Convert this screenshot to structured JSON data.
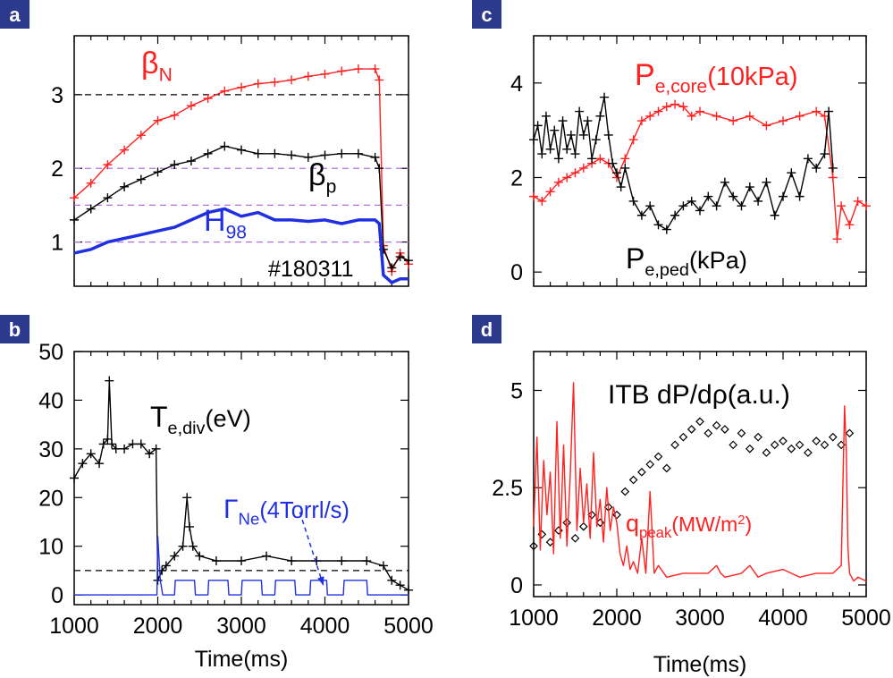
{
  "figure": {
    "time_axis_label": "Time(ms)"
  },
  "chart_data": [
    {
      "panel": "a",
      "type": "line",
      "xlim": [
        1000,
        5000
      ],
      "ylim": [
        0.4,
        3.8
      ],
      "yticks": [
        "1",
        "2",
        "3"
      ],
      "xticks": [],
      "reference_lines": [
        {
          "y": 3.0,
          "style": "dashed",
          "color": "#000000"
        },
        {
          "y": 2.0,
          "style": "dashed",
          "color": "#b070e0"
        },
        {
          "y": 1.5,
          "style": "dashed",
          "color": "#b070e0"
        },
        {
          "y": 1.0,
          "style": "dashed",
          "color": "#b070e0"
        }
      ],
      "shot_label": "#180311",
      "series": [
        {
          "name": "βN",
          "label_main": "β",
          "label_sub": "N",
          "color": "#ff2020",
          "marker": "plus",
          "x": [
            1000,
            1200,
            1400,
            1600,
            1800,
            2000,
            2200,
            2400,
            2600,
            2800,
            3000,
            3200,
            3400,
            3600,
            3800,
            4000,
            4200,
            4400,
            4600,
            4650,
            4700,
            4800,
            4900,
            5000
          ],
          "y": [
            1.6,
            1.8,
            2.05,
            2.25,
            2.45,
            2.65,
            2.72,
            2.85,
            2.95,
            3.05,
            3.1,
            3.15,
            3.17,
            3.2,
            3.25,
            3.28,
            3.32,
            3.35,
            3.35,
            3.2,
            0.95,
            0.6,
            0.85,
            0.7
          ]
        },
        {
          "name": "βp",
          "label_main": "β",
          "label_sub": "p",
          "color": "#000000",
          "marker": "plus",
          "x": [
            1000,
            1200,
            1400,
            1600,
            1800,
            2000,
            2200,
            2400,
            2600,
            2800,
            3000,
            3200,
            3400,
            3600,
            3800,
            4000,
            4200,
            4400,
            4600,
            4650,
            4700,
            4800,
            4900,
            5000
          ],
          "y": [
            1.3,
            1.45,
            1.6,
            1.75,
            1.85,
            1.95,
            2.05,
            2.1,
            2.2,
            2.3,
            2.25,
            2.2,
            2.2,
            2.18,
            2.15,
            2.18,
            2.2,
            2.2,
            2.15,
            2.0,
            0.9,
            0.65,
            0.8,
            0.75
          ]
        },
        {
          "name": "H98",
          "label_main": "H",
          "label_sub": "98",
          "color": "#2030e0",
          "marker": "none",
          "x": [
            1000,
            1200,
            1400,
            1600,
            1800,
            2000,
            2200,
            2400,
            2600,
            2800,
            3000,
            3200,
            3400,
            3600,
            3800,
            4000,
            4200,
            4400,
            4600,
            4650,
            4700,
            4800,
            4900,
            5000
          ],
          "y": [
            0.85,
            0.9,
            1.0,
            1.05,
            1.1,
            1.15,
            1.2,
            1.3,
            1.4,
            1.45,
            1.35,
            1.4,
            1.3,
            1.3,
            1.28,
            1.3,
            1.25,
            1.3,
            1.3,
            1.25,
            0.55,
            0.45,
            0.5,
            0.5
          ]
        }
      ]
    },
    {
      "panel": "b",
      "type": "line",
      "xlim": [
        1000,
        5000
      ],
      "ylim": [
        -2,
        50
      ],
      "yticks": [
        "0",
        "10",
        "20",
        "30",
        "40",
        "50"
      ],
      "xticks": [
        "1000",
        "2000",
        "3000",
        "4000",
        "5000"
      ],
      "reference_lines": [
        {
          "y": 5,
          "style": "dashed",
          "color": "#000000"
        }
      ],
      "arrow_annotation": {
        "from": [
          3700,
          17
        ],
        "to": [
          3980,
          2
        ],
        "color": "#2030e0"
      },
      "series": [
        {
          "name": "Te,div(eV)",
          "label_main": "T",
          "label_sub": "e,div",
          "label_tail": "(eV)",
          "color": "#000000",
          "marker": "plus",
          "x": [
            1000,
            1100,
            1200,
            1300,
            1350,
            1400,
            1420,
            1450,
            1500,
            1600,
            1700,
            1800,
            1900,
            1980,
            2000,
            2050,
            2100,
            2200,
            2300,
            2350,
            2380,
            2420,
            2500,
            2700,
            3000,
            3300,
            3600,
            3900,
            4200,
            4500,
            4700,
            4800,
            4900,
            5000
          ],
          "y": [
            24,
            27,
            29,
            27,
            31,
            32,
            44,
            31,
            30,
            30,
            31,
            31,
            29,
            30,
            3,
            5,
            6,
            8,
            10,
            20,
            14,
            10,
            8,
            7,
            7,
            8,
            7,
            7,
            7,
            7,
            6,
            3,
            2,
            1
          ]
        },
        {
          "name": "ΓNe(4Torrl/s)",
          "label_main": "Γ",
          "label_sub": "Ne",
          "label_tail": "(4Torrl/s)",
          "color": "#2030e0",
          "marker": "none",
          "x": [
            1000,
            1990,
            2000,
            2030,
            2060,
            2200,
            2210,
            2440,
            2450,
            2600,
            2610,
            2840,
            2850,
            3000,
            3010,
            3240,
            3250,
            3400,
            3410,
            3640,
            3650,
            3820,
            3830,
            4020,
            4030,
            4220,
            4230,
            4500,
            4510,
            5000
          ],
          "y": [
            0,
            0,
            12,
            3,
            0,
            0,
            3,
            3,
            0,
            0,
            3,
            3,
            0,
            0,
            3,
            3,
            0,
            0,
            3,
            3,
            0,
            0,
            3,
            3,
            0,
            0,
            3,
            3,
            0,
            0
          ]
        }
      ]
    },
    {
      "panel": "c",
      "type": "line",
      "xlim": [
        1000,
        5000
      ],
      "ylim": [
        -0.3,
        5.0
      ],
      "yticks": [
        "0",
        "2",
        "4"
      ],
      "xticks": [],
      "series": [
        {
          "name": "Pe,core(10kPa)",
          "label_main": "P",
          "label_sub": "e,core",
          "label_tail": "(10kPa)",
          "color": "#ff2020",
          "marker": "plus",
          "x": [
            1000,
            1100,
            1200,
            1300,
            1400,
            1500,
            1600,
            1700,
            1800,
            1900,
            2000,
            2100,
            2200,
            2300,
            2400,
            2500,
            2600,
            2700,
            2800,
            2900,
            3000,
            3200,
            3400,
            3600,
            3800,
            4000,
            4200,
            4400,
            4500,
            4600,
            4650,
            4700,
            4800,
            4900,
            5000
          ],
          "y": [
            1.6,
            1.5,
            1.7,
            1.9,
            2.0,
            2.1,
            2.2,
            2.3,
            2.4,
            2.3,
            2.0,
            2.4,
            2.8,
            3.2,
            3.3,
            3.4,
            3.5,
            3.55,
            3.5,
            3.3,
            3.4,
            3.3,
            3.2,
            3.3,
            3.1,
            3.2,
            3.3,
            3.4,
            3.3,
            2.0,
            0.7,
            1.4,
            1.0,
            1.5,
            1.4
          ]
        },
        {
          "name": "Pe,ped(kPa)",
          "label_main": "P",
          "label_sub": "e,ped",
          "label_tail": "(kPa)",
          "color": "#000000",
          "marker": "plus",
          "x": [
            1000,
            1050,
            1100,
            1150,
            1200,
            1250,
            1300,
            1350,
            1400,
            1450,
            1500,
            1550,
            1600,
            1650,
            1700,
            1750,
            1800,
            1850,
            1900,
            1950,
            2000,
            2050,
            2100,
            2200,
            2300,
            2400,
            2500,
            2600,
            2700,
            2800,
            2900,
            3000,
            3100,
            3200,
            3300,
            3400,
            3500,
            3600,
            3700,
            3800,
            3900,
            4000,
            4100,
            4200,
            4300,
            4400,
            4500,
            4550,
            4600
          ],
          "y": [
            2.8,
            3.1,
            2.5,
            3.3,
            2.6,
            3.0,
            2.4,
            3.2,
            2.6,
            2.9,
            2.5,
            3.4,
            2.9,
            3.2,
            2.4,
            2.8,
            3.3,
            3.7,
            2.9,
            2.3,
            2.1,
            1.8,
            2.2,
            1.5,
            1.2,
            1.4,
            1.0,
            0.9,
            1.2,
            1.4,
            1.5,
            1.3,
            1.6,
            1.4,
            1.9,
            1.6,
            1.4,
            1.8,
            1.5,
            1.9,
            1.2,
            1.6,
            2.1,
            1.6,
            2.4,
            2.2,
            2.5,
            3.4,
            2.2
          ]
        }
      ]
    },
    {
      "panel": "d",
      "type": "line",
      "xlim": [
        1000,
        5000
      ],
      "ylim": [
        -0.3,
        6.0
      ],
      "yticks": [
        "0",
        "2.5",
        "5"
      ],
      "xticks": [
        "1000",
        "2000",
        "3000",
        "4000",
        "5000"
      ],
      "series": [
        {
          "name": "ITB dP/dρ(a.u.)",
          "label_text": "ITB dP/dρ(a.u.)",
          "color": "#000000",
          "marker": "diamond",
          "x": [
            1000,
            1100,
            1200,
            1300,
            1400,
            1500,
            1600,
            1700,
            1800,
            1900,
            2000,
            2100,
            2200,
            2300,
            2400,
            2500,
            2600,
            2700,
            2800,
            2900,
            3000,
            3100,
            3200,
            3300,
            3400,
            3500,
            3600,
            3700,
            3800,
            3900,
            4000,
            4100,
            4200,
            4300,
            4400,
            4500,
            4600,
            4700,
            4800
          ],
          "y": [
            1.0,
            1.3,
            1.1,
            1.4,
            1.6,
            1.2,
            1.5,
            1.8,
            1.6,
            2.0,
            1.8,
            2.4,
            2.7,
            2.9,
            3.1,
            3.3,
            3.0,
            3.6,
            3.8,
            4.0,
            4.2,
            3.9,
            4.1,
            4.0,
            3.6,
            3.9,
            3.5,
            3.8,
            3.4,
            3.6,
            3.7,
            3.5,
            3.6,
            3.4,
            3.7,
            3.6,
            3.8,
            3.6,
            3.9
          ]
        },
        {
          "name": "qpeak(MW/m2)",
          "label_main": "q",
          "label_sub": "peak",
          "label_tail_pre": "(MW/m",
          "label_sup": "2",
          "label_tail_post": ")",
          "color": "#ff2020",
          "marker": "none",
          "x": [
            1000,
            1040,
            1080,
            1120,
            1160,
            1200,
            1240,
            1280,
            1320,
            1360,
            1400,
            1440,
            1480,
            1520,
            1560,
            1600,
            1640,
            1680,
            1720,
            1760,
            1800,
            1840,
            1880,
            1920,
            1960,
            2000,
            2040,
            2080,
            2120,
            2160,
            2200,
            2250,
            2300,
            2350,
            2400,
            2450,
            2500,
            2600,
            2800,
            3000,
            3100,
            3200,
            3250,
            3300,
            3500,
            3600,
            3700,
            3800,
            4000,
            4200,
            4400,
            4600,
            4700,
            4740,
            4760,
            4780,
            4800,
            4850,
            4900,
            5000
          ],
          "y": [
            1.5,
            3.8,
            0.9,
            3.2,
            1.8,
            2.9,
            0.8,
            4.2,
            1.2,
            3.6,
            1.0,
            2.8,
            5.2,
            1.4,
            3.0,
            1.6,
            2.6,
            1.2,
            3.4,
            1.5,
            2.2,
            1.1,
            2.5,
            1.4,
            2.0,
            1.6,
            0.8,
            0.5,
            1.0,
            0.4,
            0.6,
            0.3,
            1.2,
            0.3,
            2.4,
            0.3,
            0.5,
            0.2,
            0.3,
            0.3,
            0.3,
            0.5,
            0.3,
            0.2,
            0.3,
            0.5,
            0.2,
            0.3,
            0.4,
            0.2,
            0.3,
            0.3,
            0.5,
            4.6,
            3.5,
            1.0,
            0.3,
            0.1,
            0.2,
            0.1
          ]
        }
      ]
    }
  ]
}
